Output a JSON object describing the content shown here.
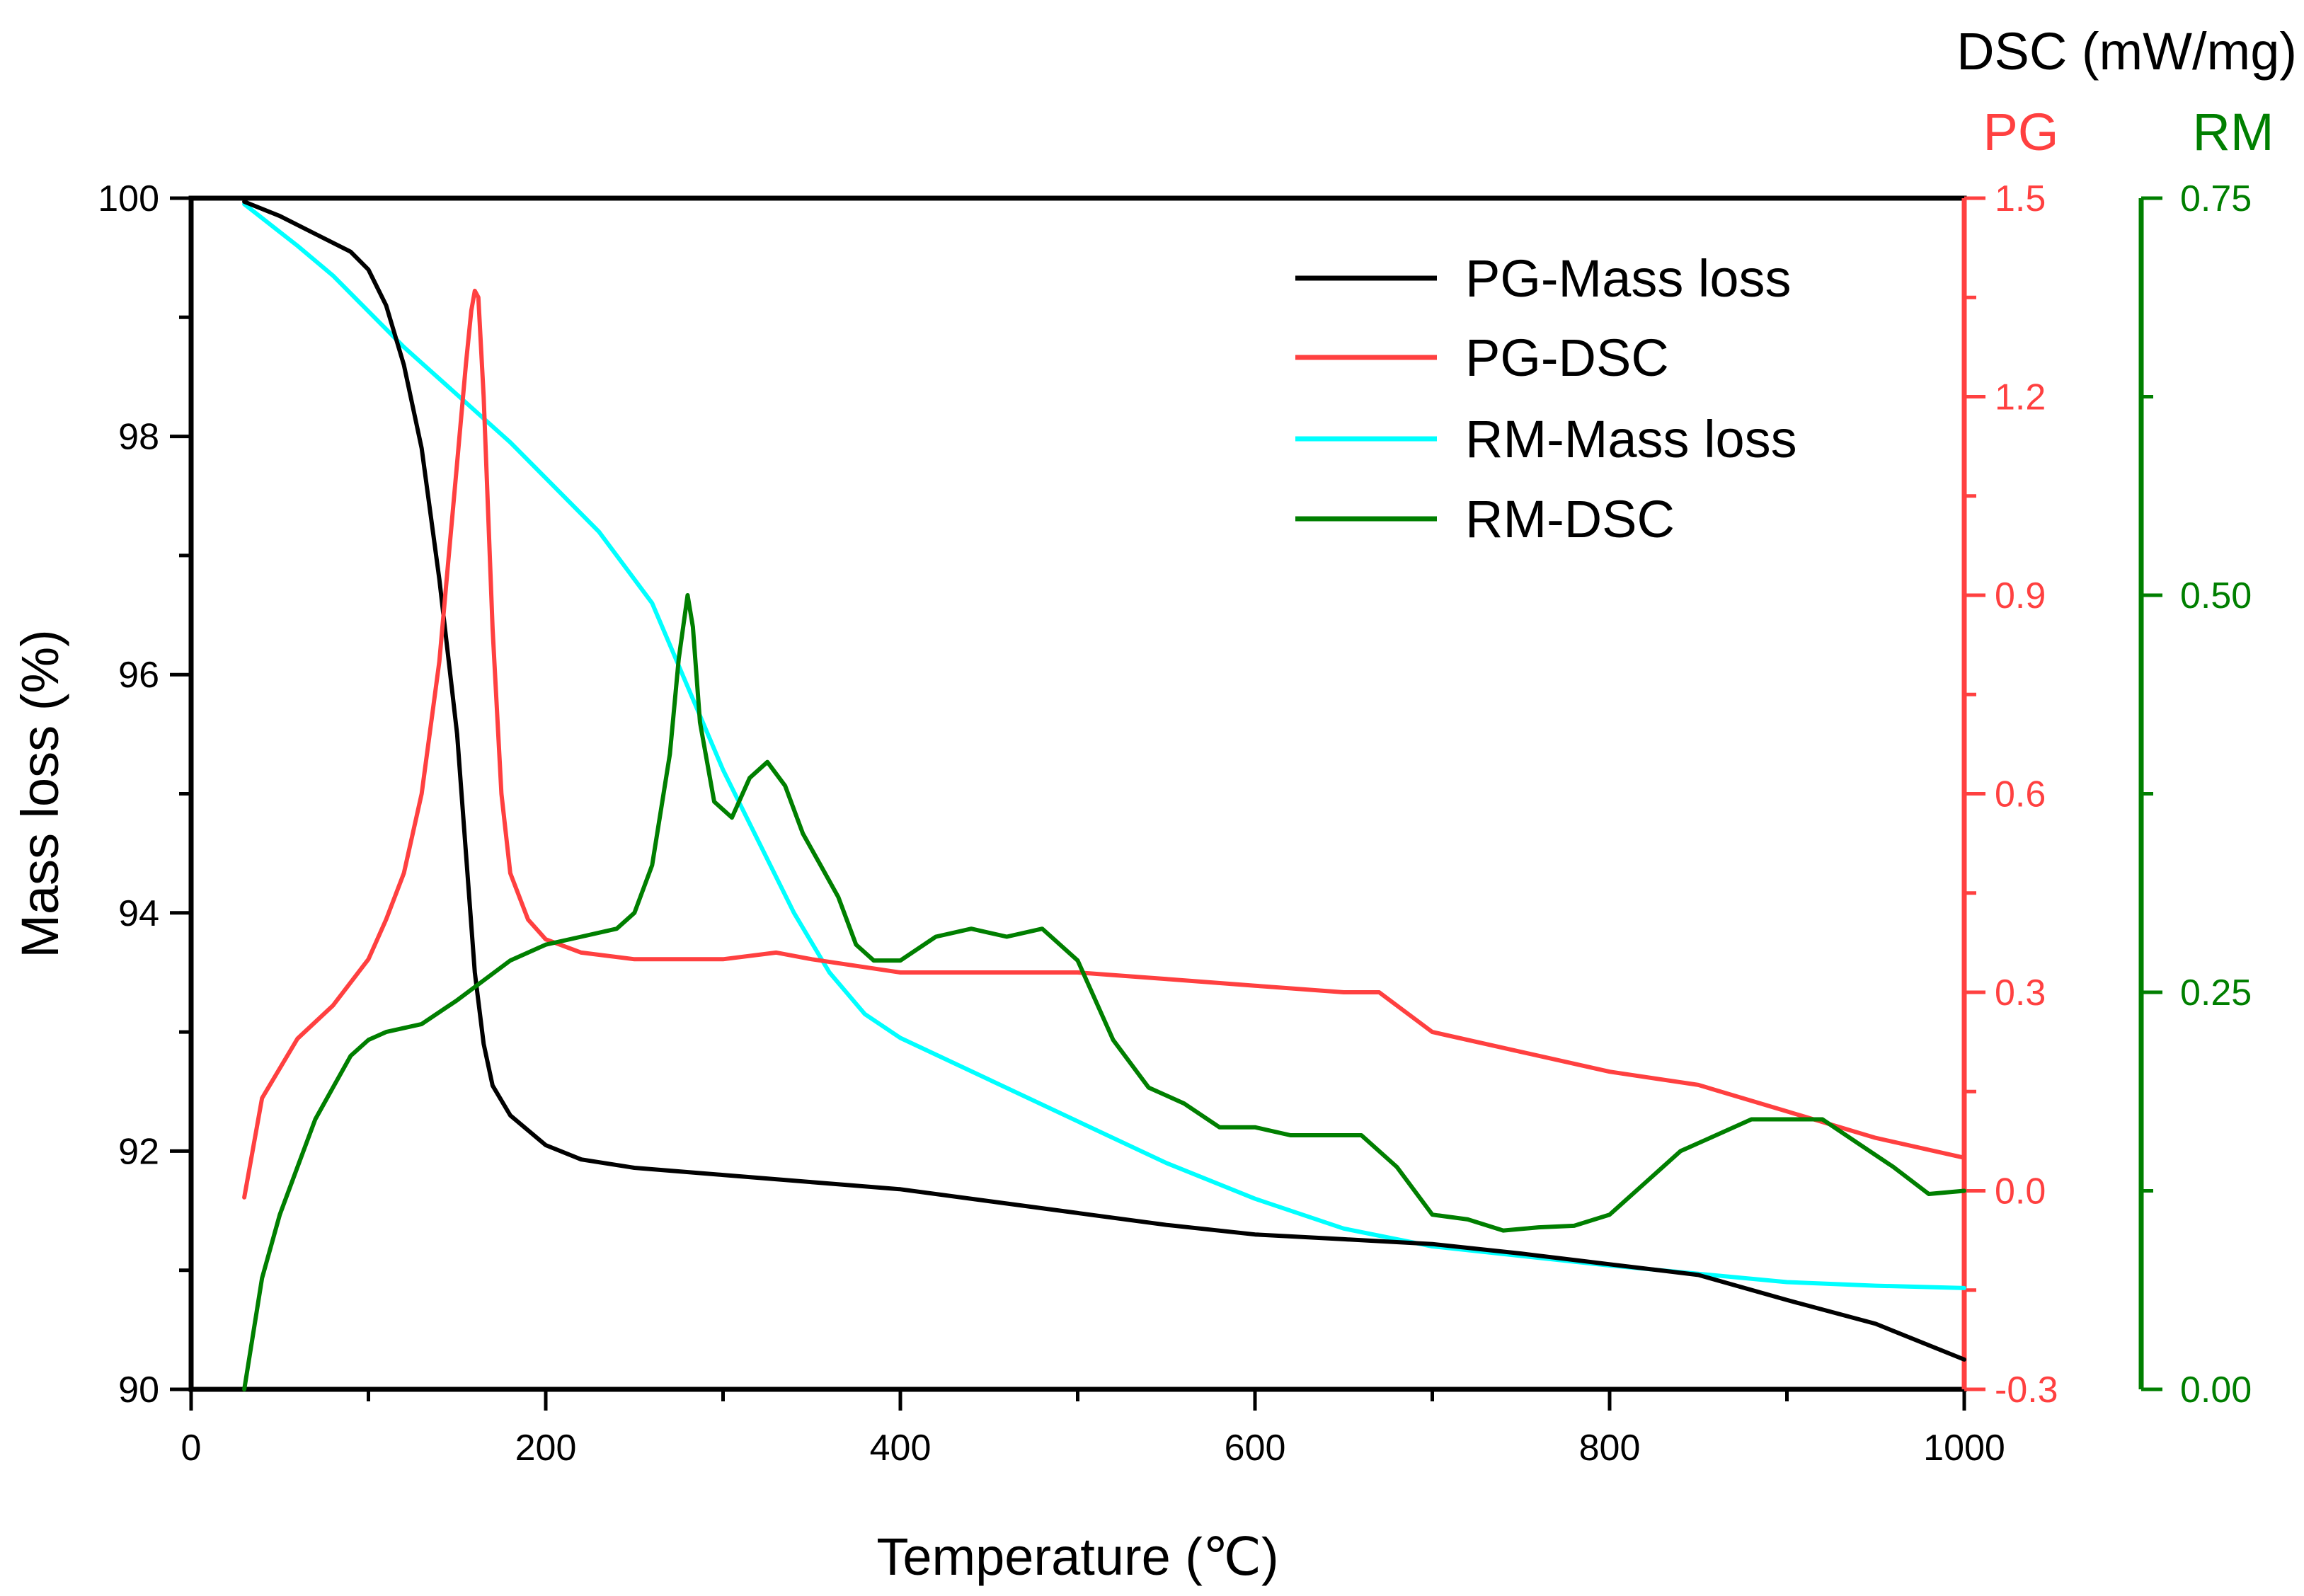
{
  "chart_data": {
    "type": "line",
    "title": "",
    "xlabel": "Temperature (℃)",
    "ylabel": "Mass loss (%)",
    "dsc_header": "DSC (mW/mg)",
    "pg_axis_label": "PG",
    "rm_axis_label": "RM",
    "xlim": [
      0,
      1000
    ],
    "ylim": [
      90,
      100
    ],
    "y2lim": [
      -0.3,
      1.5
    ],
    "y3lim": [
      0,
      0.75
    ],
    "x_ticks": [
      "0",
      "200",
      "400",
      "600",
      "800",
      "1000"
    ],
    "y_ticks": [
      "90",
      "92",
      "94",
      "96",
      "98",
      "100"
    ],
    "y2_ticks": [
      "-0.3",
      "0.0",
      "0.3",
      "0.6",
      "0.9",
      "1.2",
      "1.5"
    ],
    "y3_ticks": [
      "0.00",
      "0.25",
      "0.50",
      "0.75"
    ],
    "colors": {
      "pg_mass": "#000000",
      "pg_dsc": "#ff4040",
      "rm_mass": "#00ffff",
      "rm_dsc": "#007f00"
    },
    "legend_position": "top-right",
    "series": [
      {
        "name": "PG-Mass loss",
        "axis": "left",
        "x": [
          30,
          50,
          70,
          90,
          100,
          110,
          120,
          130,
          140,
          150,
          155,
          160,
          165,
          170,
          180,
          200,
          220,
          250,
          300,
          350,
          400,
          450,
          500,
          550,
          600,
          650,
          700,
          750,
          800,
          850,
          900,
          950,
          1000
        ],
        "y": [
          99.97,
          99.85,
          99.7,
          99.55,
          99.4,
          99.1,
          98.6,
          97.9,
          96.8,
          95.5,
          94.5,
          93.5,
          92.9,
          92.55,
          92.3,
          92.05,
          91.93,
          91.86,
          91.8,
          91.74,
          91.68,
          91.58,
          91.48,
          91.38,
          91.3,
          91.26,
          91.22,
          91.14,
          91.05,
          90.96,
          90.75,
          90.55,
          90.25
        ]
      },
      {
        "name": "PG-DSC",
        "axis": "right1",
        "x": [
          30,
          40,
          60,
          80,
          100,
          110,
          120,
          130,
          140,
          145,
          150,
          155,
          158,
          160,
          162,
          165,
          170,
          175,
          180,
          190,
          200,
          220,
          250,
          300,
          330,
          350,
          400,
          450,
          500,
          550,
          600,
          650,
          670,
          700,
          750,
          800,
          850,
          900,
          950,
          1000
        ],
        "y": [
          -0.01,
          0.14,
          0.23,
          0.28,
          0.35,
          0.41,
          0.48,
          0.6,
          0.8,
          0.95,
          1.1,
          1.25,
          1.33,
          1.36,
          1.35,
          1.2,
          0.85,
          0.6,
          0.48,
          0.41,
          0.38,
          0.36,
          0.35,
          0.35,
          0.36,
          0.35,
          0.33,
          0.33,
          0.33,
          0.32,
          0.31,
          0.3,
          0.3,
          0.24,
          0.21,
          0.18,
          0.16,
          0.12,
          0.08,
          0.05
        ]
      },
      {
        "name": "RM-Mass loss",
        "axis": "left",
        "x": [
          30,
          60,
          80,
          100,
          120,
          150,
          180,
          200,
          230,
          260,
          280,
          300,
          320,
          340,
          360,
          380,
          400,
          450,
          500,
          550,
          600,
          650,
          700,
          750,
          800,
          850,
          900,
          950,
          1000
        ],
        "y": [
          99.95,
          99.6,
          99.35,
          99.05,
          98.75,
          98.35,
          97.95,
          97.65,
          97.2,
          96.6,
          95.9,
          95.2,
          94.6,
          94.0,
          93.5,
          93.15,
          92.95,
          92.6,
          92.25,
          91.9,
          91.6,
          91.35,
          91.2,
          91.12,
          91.04,
          90.97,
          90.9,
          90.87,
          90.85
        ]
      },
      {
        "name": "RM-DSC",
        "axis": "right2",
        "x": [
          30,
          40,
          50,
          60,
          70,
          80,
          90,
          100,
          110,
          130,
          150,
          180,
          200,
          220,
          240,
          250,
          260,
          270,
          275,
          280,
          283,
          287,
          295,
          305,
          315,
          325,
          335,
          345,
          355,
          365,
          375,
          385,
          400,
          420,
          440,
          460,
          480,
          500,
          520,
          540,
          560,
          580,
          600,
          620,
          640,
          660,
          680,
          700,
          720,
          740,
          760,
          780,
          800,
          820,
          840,
          860,
          880,
          900,
          920,
          940,
          960,
          980,
          1000
        ],
        "y": [
          0.0,
          0.07,
          0.11,
          0.14,
          0.17,
          0.19,
          0.21,
          0.22,
          0.225,
          0.23,
          0.245,
          0.27,
          0.28,
          0.285,
          0.29,
          0.3,
          0.33,
          0.4,
          0.46,
          0.5,
          0.48,
          0.42,
          0.37,
          0.36,
          0.385,
          0.395,
          0.38,
          0.35,
          0.33,
          0.31,
          0.28,
          0.27,
          0.27,
          0.285,
          0.29,
          0.285,
          0.29,
          0.27,
          0.22,
          0.19,
          0.18,
          0.165,
          0.165,
          0.16,
          0.16,
          0.16,
          0.14,
          0.11,
          0.107,
          0.1,
          0.102,
          0.103,
          0.11,
          0.13,
          0.15,
          0.16,
          0.17,
          0.17,
          0.17,
          0.155,
          0.14,
          0.123,
          0.125
        ]
      }
    ]
  }
}
